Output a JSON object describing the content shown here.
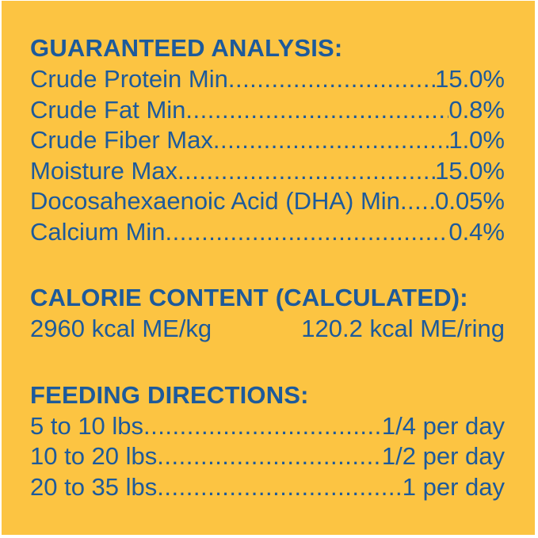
{
  "colors": {
    "panel_background": "#FCC442",
    "text_blue": "#1D5A9B",
    "frame_white": "#FFFFFF"
  },
  "decor": {
    "leader_dots": ".........................................................................................."
  },
  "guaranteed_analysis": {
    "title": "GUARANTEED ANALYSIS:",
    "rows": [
      {
        "label": "Crude Protein Min",
        "value": "15.0%"
      },
      {
        "label": "Crude Fat Min",
        "value": "0.8%"
      },
      {
        "label": "Crude Fiber Max",
        "value": "1.0%"
      },
      {
        "label": "Moisture Max",
        "value": "15.0%"
      },
      {
        "label": "Docosahexaenoic Acid (DHA) Min",
        "value": "0.05%"
      },
      {
        "label": "Calcium Min",
        "value": "0.4%"
      }
    ]
  },
  "calorie_content": {
    "title": "CALORIE CONTENT (CALCULATED):",
    "per_kg": "2960 kcal ME/kg",
    "per_ring": "120.2 kcal ME/ring"
  },
  "feeding_directions": {
    "title": "FEEDING DIRECTIONS:",
    "rows": [
      {
        "label": "5 to 10 lbs",
        "value": "1/4 per day"
      },
      {
        "label": "10 to 20 lbs",
        "value": "1/2 per day"
      },
      {
        "label": "20 to 35 lbs",
        "value": "1 per day"
      }
    ]
  }
}
